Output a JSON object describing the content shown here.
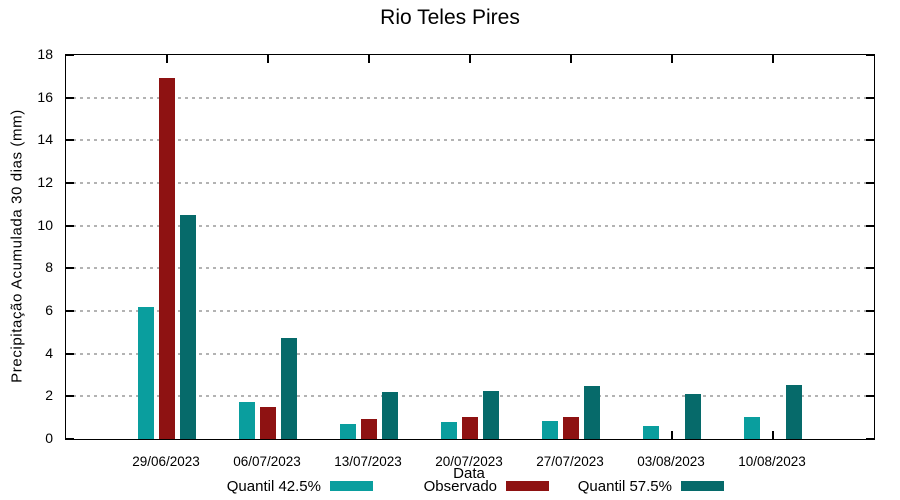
{
  "chart_data": {
    "type": "bar",
    "title": "Rio Teles Pires",
    "xlabel": "Data",
    "ylabel": "Precipitação Acumulada 30 dias (mm)",
    "ylim": [
      0,
      18
    ],
    "yticks": [
      0,
      2,
      4,
      6,
      8,
      10,
      12,
      14,
      16,
      18
    ],
    "grid": true,
    "legend_position": "bottom-center",
    "categories": [
      "29/06/2023",
      "06/07/2023",
      "13/07/2023",
      "20/07/2023",
      "27/07/2023",
      "03/08/2023",
      "10/08/2023"
    ],
    "series": [
      {
        "name": "Quantil 42.5%",
        "color": "#0a9e9e",
        "values": [
          6.2,
          1.75,
          0.7,
          0.8,
          0.85,
          0.6,
          1.05
        ]
      },
      {
        "name": "Observado",
        "color": "#8e1212",
        "values": [
          16.9,
          1.5,
          0.95,
          1.05,
          1.05,
          null,
          null
        ]
      },
      {
        "name": "Quantil 57.5%",
        "color": "#066a6a",
        "values": [
          10.5,
          4.75,
          2.2,
          2.25,
          2.5,
          2.1,
          2.55
        ]
      }
    ]
  },
  "colors": {
    "axis": "#000000",
    "grid": "#b3b3b3",
    "background": "#ffffff"
  }
}
